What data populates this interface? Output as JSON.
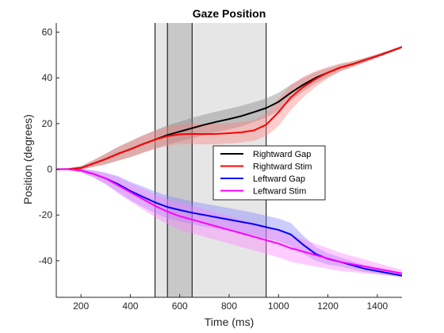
{
  "chart_data": {
    "type": "line",
    "title": "Gaze Position",
    "xlabel": "Time (ms)",
    "ylabel": "Position (degrees)",
    "xlim": [
      100,
      1500
    ],
    "ylim": [
      -56,
      64
    ],
    "xticks": [
      200,
      400,
      600,
      800,
      1000,
      1200,
      1400
    ],
    "yticks": [
      -40,
      -20,
      0,
      20,
      40,
      60
    ],
    "grid": false,
    "legend_position": "center-right",
    "shaded_regions": [
      {
        "x0": 500,
        "x1": 950,
        "color": "#e6e6e6"
      },
      {
        "x0": 550,
        "x1": 650,
        "color": "#c8c8c8"
      }
    ],
    "vertical_lines": [
      500,
      550,
      650,
      950
    ],
    "x": [
      100,
      150,
      200,
      250,
      300,
      350,
      400,
      450,
      500,
      550,
      600,
      650,
      700,
      750,
      800,
      850,
      900,
      950,
      1000,
      1050,
      1100,
      1150,
      1200,
      1250,
      1300,
      1350,
      1400,
      1450,
      1500
    ],
    "series": [
      {
        "name": "Rightward Gap",
        "color": "#000000",
        "band_color": "#808080",
        "values": [
          0,
          0.1,
          0.6,
          2.5,
          4.5,
          6.8,
          8.8,
          11,
          13,
          15,
          16.5,
          18,
          19.5,
          20.8,
          22,
          23.3,
          25,
          26.8,
          29.5,
          33.5,
          37,
          40,
          42.3,
          44.5,
          46,
          47.8,
          49.6,
          51.5,
          53.5
        ],
        "band": [
          0,
          0.3,
          0.8,
          1.5,
          2.3,
          3,
          3.5,
          3.8,
          4,
          4.2,
          4.3,
          4.5,
          4.5,
          4.5,
          4.5,
          4.5,
          4.3,
          4.2,
          4,
          3.5,
          3,
          2.5,
          2,
          1.5,
          1.2,
          1,
          0.8,
          0.6,
          0.5
        ]
      },
      {
        "name": "Rightward Stim",
        "color": "#ff0000",
        "band_color": "#ff8080",
        "values": [
          0,
          0.1,
          0.6,
          2.5,
          4.5,
          6.8,
          8.8,
          11,
          13,
          14.5,
          15.3,
          15.5,
          15.4,
          15.5,
          15.8,
          16.2,
          17,
          19.5,
          25,
          31.5,
          36,
          39.5,
          42.3,
          44.5,
          46,
          47.8,
          49.6,
          51.5,
          53.5
        ],
        "band": [
          0,
          0.3,
          0.8,
          1.5,
          2.3,
          3,
          3.5,
          3.8,
          4,
          4.2,
          4.3,
          4.5,
          4.5,
          4.5,
          4.5,
          4.5,
          4.5,
          5,
          6,
          5.5,
          4.5,
          3.5,
          2.5,
          1.8,
          1.3,
          1,
          0.8,
          0.6,
          0.5
        ]
      },
      {
        "name": "Leftward Gap",
        "color": "#0000ff",
        "band_color": "#8080ff",
        "values": [
          0,
          0,
          -0.5,
          -2,
          -4,
          -6.5,
          -9.5,
          -12,
          -14.5,
          -16.5,
          -17.8,
          -19,
          -20,
          -21,
          -22,
          -23,
          -24,
          -25.3,
          -26.5,
          -28.5,
          -33,
          -37,
          -39.2,
          -40.5,
          -42,
          -43.5,
          -44.5,
          -45.5,
          -46.5
        ],
        "band": [
          0,
          0.3,
          0.8,
          1.5,
          2.5,
          3.5,
          4,
          4.5,
          4.8,
          5,
          5,
          5,
          5,
          5,
          5,
          5,
          5,
          5,
          5,
          5,
          4,
          3,
          2.5,
          2,
          1.8,
          1.5,
          1.2,
          1,
          0.8
        ]
      },
      {
        "name": "Leftward Stim",
        "color": "#ff00ff",
        "band_color": "#ff80ff",
        "values": [
          0,
          0,
          -0.5,
          -2,
          -4,
          -7,
          -10,
          -13,
          -16,
          -18.5,
          -20.5,
          -22,
          -23.5,
          -25,
          -26.5,
          -28,
          -29.5,
          -31,
          -32.5,
          -34.5,
          -36,
          -37.5,
          -39,
          -40.5,
          -41.5,
          -42.5,
          -43.5,
          -44.5,
          -45.5
        ],
        "band": [
          0,
          0.3,
          0.8,
          1.5,
          2.5,
          3.5,
          4,
          4.5,
          5,
          5.5,
          6,
          6,
          6,
          6,
          6,
          6,
          6,
          6,
          6,
          6,
          5.5,
          5,
          4.5,
          4,
          3.5,
          3,
          2.5,
          2,
          1.5
        ]
      }
    ]
  }
}
